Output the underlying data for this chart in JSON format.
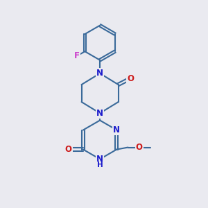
{
  "background_color": "#eaeaf0",
  "bond_color": "#3a6a9a",
  "bond_width": 1.5,
  "atom_colors": {
    "N": "#1a1acc",
    "O": "#cc1a1a",
    "F": "#cc44cc",
    "C": "#3a6a9a"
  },
  "font_size_atom": 8.5
}
